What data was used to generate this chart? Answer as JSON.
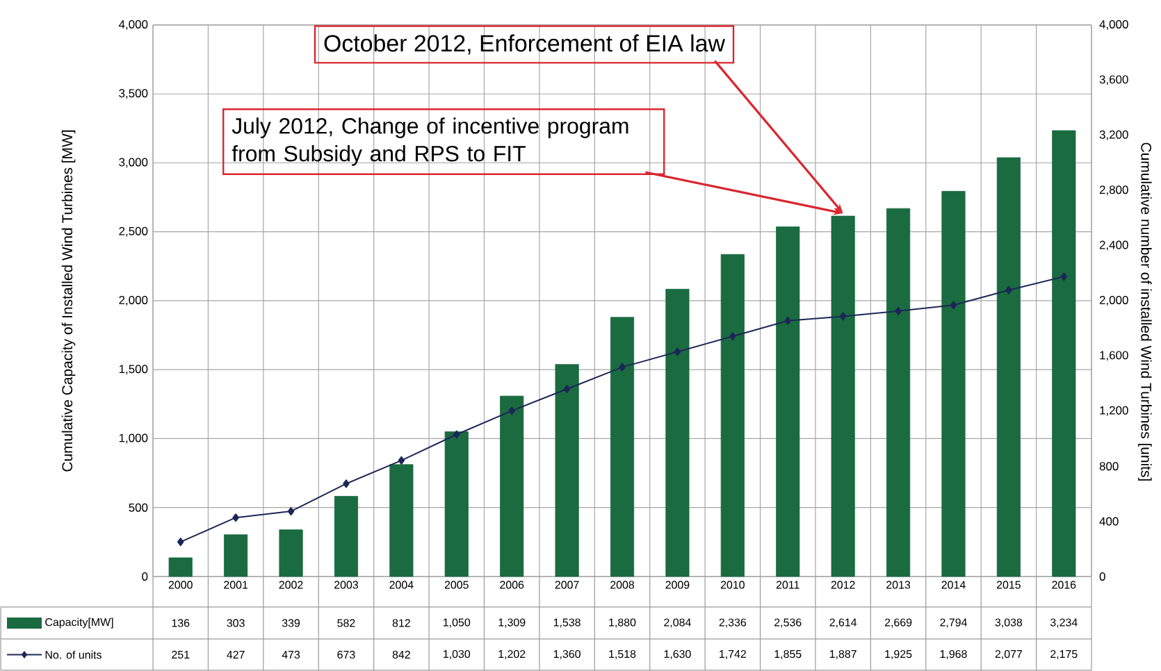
{
  "chart_data": {
    "type": "bar",
    "ylabel": "Cumulative Capacity of Installed Wind Turbines [MW]",
    "y2label": "Cumulative number of installed Wind Turbines [units]",
    "categories": [
      "2000",
      "2001",
      "2002",
      "2003",
      "2004",
      "2005",
      "2006",
      "2007",
      "2008",
      "2009",
      "2010",
      "2011",
      "2012",
      "2013",
      "2014",
      "2015",
      "2016"
    ],
    "series": [
      {
        "name": "Capacity[MW]",
        "axis": "y",
        "color": "#1a6b40",
        "values": [
          136,
          303,
          339,
          582,
          812,
          1050,
          1309,
          1538,
          1880,
          2084,
          2336,
          2536,
          2614,
          2669,
          2794,
          3038,
          3234
        ],
        "value_labels": [
          "136",
          "303",
          "339",
          "582",
          "812",
          "1,050",
          "1,309",
          "1,538",
          "1,880",
          "2,084",
          "2,336",
          "2,536",
          "2,614",
          "2,669",
          "2,794",
          "3,038",
          "3,234"
        ]
      },
      {
        "name": "No. of units",
        "type": "line",
        "axis": "y2",
        "color": "#1c2757",
        "marker": "diamond",
        "values": [
          251,
          427,
          473,
          673,
          842,
          1030,
          1202,
          1360,
          1518,
          1630,
          1742,
          1855,
          1887,
          1925,
          1968,
          2077,
          2175
        ],
        "value_labels": [
          "251",
          "427",
          "473",
          "673",
          "842",
          "1,030",
          "1,202",
          "1,360",
          "1,518",
          "1,630",
          "1,742",
          "1,855",
          "1,887",
          "1,925",
          "1,968",
          "2,077",
          "2,175"
        ]
      }
    ],
    "ylim": [
      0,
      4000
    ],
    "yticks": [
      0,
      500,
      {
        "value": 1000,
        "label": "1,000"
      },
      {
        "value": 1500,
        "label": "1,500"
      },
      {
        "value": 2000,
        "label": "2,000"
      },
      {
        "value": 2500,
        "label": "2,500"
      },
      {
        "value": 3000,
        "label": "3,000"
      },
      {
        "value": 3500,
        "label": "3,500"
      },
      {
        "value": 4000,
        "label": "4,000"
      }
    ],
    "y2lim": [
      0,
      4000
    ],
    "y2ticks": [
      0,
      400,
      800,
      {
        "value": 1200,
        "label": "1,200"
      },
      {
        "value": 1600,
        "label": "1,600"
      },
      {
        "value": 2000,
        "label": "2,000"
      },
      {
        "value": 2400,
        "label": "2,400"
      },
      {
        "value": 2800,
        "label": "2,800"
      },
      {
        "value": 3200,
        "label": "3,200"
      },
      {
        "value": 3600,
        "label": "3,600"
      },
      {
        "value": 4000,
        "label": "4,000"
      }
    ],
    "annotations": [
      {
        "text": "October 2012, Enforcement of EIA law",
        "x": "2012",
        "y": 2614
      },
      {
        "text": "July 2012, Change of incentive program from Subsidy and RPS to FIT",
        "x": "2012",
        "y": 2614
      }
    ],
    "grid": true,
    "legend": "bottom left"
  }
}
